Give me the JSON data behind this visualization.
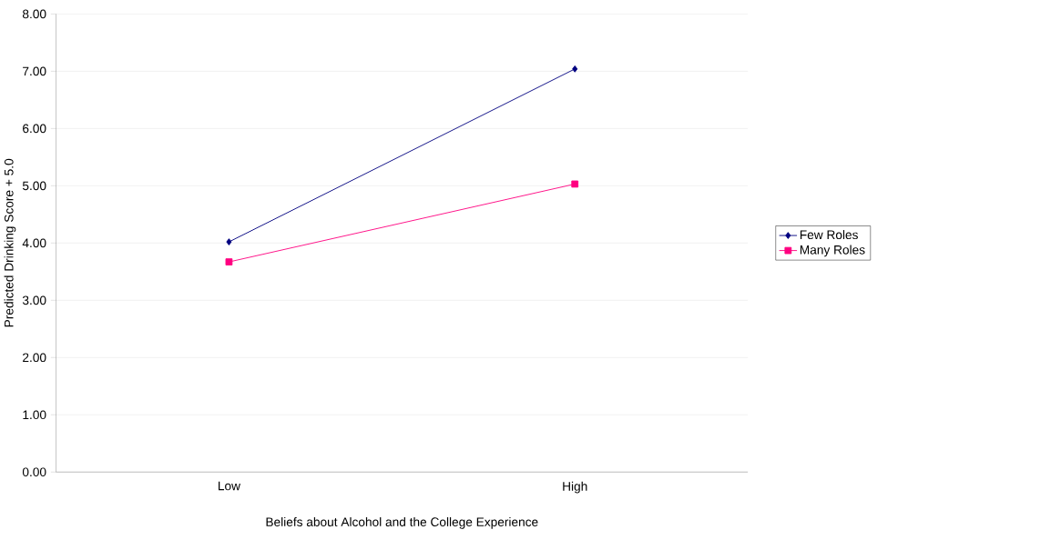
{
  "chart_data": {
    "type": "line",
    "xlabel": "Beliefs about Alcohol and the College Experience",
    "ylabel": "Predicted Drinking Score + 5.0",
    "categories": [
      "Low",
      "High"
    ],
    "series": [
      {
        "name": "Few Roles",
        "color": "#000080",
        "marker": "diamond",
        "values": [
          4.02,
          7.04
        ]
      },
      {
        "name": "Many Roles",
        "color": "#ff0080",
        "marker": "square",
        "values": [
          3.67,
          5.03
        ]
      }
    ],
    "ylim": [
      0,
      8
    ],
    "yticks": [
      {
        "value": 0,
        "label": "0.00"
      },
      {
        "value": 1,
        "label": "1.00"
      },
      {
        "value": 2,
        "label": "2.00"
      },
      {
        "value": 3,
        "label": "3.00"
      },
      {
        "value": 4,
        "label": "4.00"
      },
      {
        "value": 5,
        "label": "5.00"
      },
      {
        "value": 6,
        "label": "6.00"
      },
      {
        "value": 7,
        "label": "7.00"
      },
      {
        "value": 8,
        "label": "8.00"
      }
    ],
    "grid": "y",
    "legend": "right",
    "line_style": "solid"
  }
}
